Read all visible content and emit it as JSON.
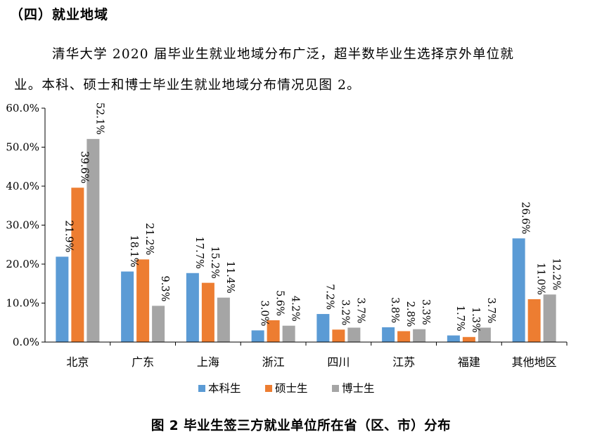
{
  "section_heading": "（四）就业地域",
  "paragraph": {
    "line1": "清华大学 2020 届毕业生就业地域分布广泛，超半数毕业生选择京外单位就",
    "line2": "业。本科、硕士和博士毕业生就业地域分布情况见图 2。"
  },
  "caption": "图 2 毕业生签三方就业单位所在省（区、市）分布",
  "chart_data": {
    "type": "bar",
    "title": "",
    "xlabel": "",
    "ylabel": "",
    "ylim": [
      0,
      60
    ],
    "yticks": [
      "0.0%",
      "10.0%",
      "20.0%",
      "30.0%",
      "40.0%",
      "50.0%",
      "60.0%"
    ],
    "grid": false,
    "legend_position": "bottom",
    "categories": [
      "北京",
      "广东",
      "上海",
      "浙江",
      "四川",
      "江苏",
      "福建",
      "其他地区"
    ],
    "series": [
      {
        "name": "本科生",
        "color": "#5B9BD5",
        "values": [
          21.9,
          18.1,
          17.7,
          3.0,
          7.2,
          3.8,
          1.7,
          26.6
        ],
        "labels": [
          "21.9%",
          "18.1%",
          "17.7%",
          "3.0%",
          "7.2%",
          "3.8%",
          "1.7%",
          "26.6%"
        ]
      },
      {
        "name": "硕士生",
        "color": "#ED7D31",
        "values": [
          39.6,
          21.2,
          15.2,
          5.6,
          3.2,
          2.8,
          1.3,
          11.0
        ],
        "labels": [
          "39.6%",
          "21.2%",
          "15.2%",
          "5.6%",
          "3.2%",
          "2.8%",
          "1.3%",
          "11.0%"
        ]
      },
      {
        "name": "博士生",
        "color": "#A5A5A5",
        "values": [
          52.1,
          9.3,
          11.4,
          4.2,
          3.7,
          3.3,
          3.7,
          12.2
        ],
        "labels": [
          "52.1%",
          "9.3%",
          "11.4%",
          "4.2%",
          "3.7%",
          "3.3%",
          "3.7%",
          "12.2%"
        ]
      }
    ]
  }
}
